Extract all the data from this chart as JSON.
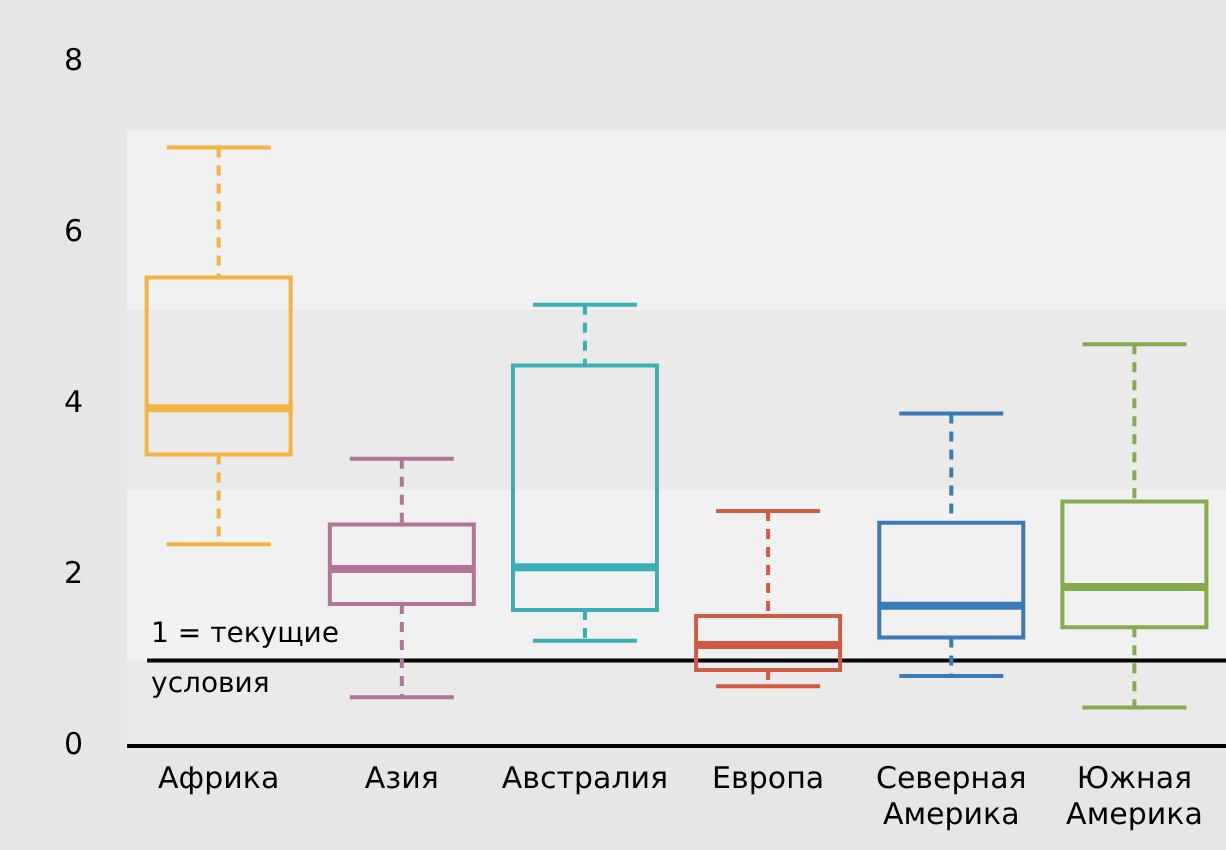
{
  "chart_data": {
    "type": "box",
    "categories": [
      "Африка",
      "Азия",
      "Австралия",
      "Европа",
      "Северная Америка",
      "Южная Америка"
    ],
    "colors": [
      "#f5b342",
      "#b07598",
      "#3aafb5",
      "#cf5b42",
      "#3a7ab5",
      "#85ab4f"
    ],
    "boxes": [
      {
        "low": 2.36,
        "q1": 3.41,
        "median": 3.95,
        "q3": 5.48,
        "high": 7.0
      },
      {
        "low": 0.57,
        "q1": 1.66,
        "median": 2.07,
        "q3": 2.59,
        "high": 3.36
      },
      {
        "low": 1.23,
        "q1": 1.59,
        "median": 2.09,
        "q3": 4.45,
        "high": 5.16
      },
      {
        "low": 0.7,
        "q1": 0.89,
        "median": 1.18,
        "q3": 1.52,
        "high": 2.75
      },
      {
        "low": 0.82,
        "q1": 1.27,
        "median": 1.64,
        "q3": 2.61,
        "high": 3.89
      },
      {
        "low": 0.45,
        "q1": 1.39,
        "median": 1.86,
        "q3": 2.86,
        "high": 4.7
      }
    ],
    "ylim": [
      0,
      8
    ],
    "yticks": [
      0,
      2,
      4,
      6,
      8
    ],
    "grid": false,
    "legend": false,
    "ref_lines": [
      {
        "axis": "y",
        "value": 1,
        "label": "1 = текущие условия",
        "color": "#000000"
      }
    ],
    "bands": [
      {
        "axis": "y",
        "from": 0,
        "to": 7.2,
        "color": "#f1f1f1"
      },
      {
        "axis": "y",
        "from": 3,
        "to": 5.1,
        "color": "#eaeaea"
      },
      {
        "axis": "y",
        "from": 0,
        "to": 1,
        "color": "#eaeaea"
      }
    ]
  }
}
